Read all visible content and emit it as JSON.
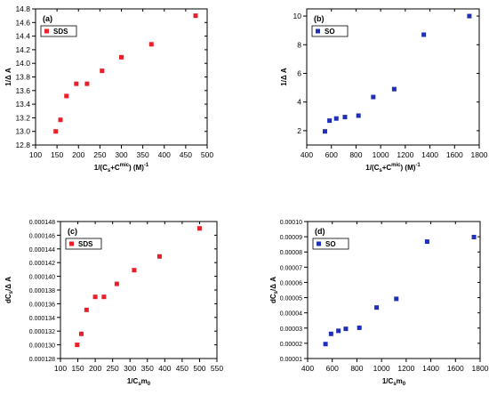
{
  "chart_data": [
    {
      "type": "scatter",
      "panel_label": "(a)",
      "xlabel_parts": [
        "1/(C",
        "s",
        "+C",
        "mic",
        ") (M)",
        "-1"
      ],
      "ylabel": "1/Δ A",
      "xlim": [
        100,
        500
      ],
      "ylim": [
        12.8,
        14.8
      ],
      "xticks": [
        100,
        150,
        200,
        250,
        300,
        350,
        400,
        450,
        500
      ],
      "yticks": [
        12.8,
        13.0,
        13.2,
        13.4,
        13.6,
        13.8,
        14.0,
        14.2,
        14.4,
        14.6,
        14.8
      ],
      "ytick_labels": [
        "12.8",
        "13.0",
        "13.2",
        "13.4",
        "13.6",
        "13.8",
        "14.0",
        "14.2",
        "14.4",
        "14.6",
        "14.8"
      ],
      "legend": {
        "label": "SDS",
        "position": "top-left"
      },
      "series": [
        {
          "name": "SDS",
          "color": "#e8202a",
          "points": [
            [
              147,
              13.0
            ],
            [
              158,
              13.17
            ],
            [
              172,
              13.52
            ],
            [
              195,
              13.7
            ],
            [
              220,
              13.7
            ],
            [
              255,
              13.89
            ],
            [
              300,
              14.09
            ],
            [
              370,
              14.28
            ],
            [
              473,
              14.7
            ]
          ]
        }
      ]
    },
    {
      "type": "scatter",
      "panel_label": "(b)",
      "xlabel_parts": [
        "1/(C",
        "s",
        "+C",
        "mic",
        ") (M)",
        "-1"
      ],
      "ylabel": "1/Δ A",
      "xlim": [
        400,
        1800
      ],
      "ylim": [
        1,
        10.5
      ],
      "xticks": [
        400,
        600,
        800,
        1000,
        1200,
        1400,
        1600,
        1800
      ],
      "yticks": [
        2,
        4,
        6,
        8,
        10
      ],
      "ytick_labels": [
        "2",
        "4",
        "6",
        "8",
        "10"
      ],
      "legend": {
        "label": "SO",
        "position": "top-left"
      },
      "series": [
        {
          "name": "SO",
          "color": "#1f2fb8",
          "points": [
            [
              548,
              1.95
            ],
            [
              585,
              2.7
            ],
            [
              640,
              2.85
            ],
            [
              710,
              2.95
            ],
            [
              820,
              3.05
            ],
            [
              940,
              4.35
            ],
            [
              1110,
              4.9
            ],
            [
              1350,
              8.7
            ],
            [
              1720,
              10.0
            ]
          ]
        }
      ]
    },
    {
      "type": "scatter",
      "panel_label": "(c)",
      "xlabel_parts": [
        "1/C",
        "s",
        "m",
        "0"
      ],
      "ylabel_parts": [
        "dC",
        "s",
        "/Δ A"
      ],
      "xlim": [
        100,
        550
      ],
      "ylim": [
        0.000128,
        0.000148
      ],
      "xticks": [
        100,
        150,
        200,
        250,
        300,
        350,
        400,
        450,
        500,
        550
      ],
      "yticks": [
        0.000128,
        0.00013,
        0.000132,
        0.000134,
        0.000136,
        0.000138,
        0.00014,
        0.000142,
        0.000144,
        0.000146,
        0.000148
      ],
      "ytick_labels": [
        "0.000128",
        "0.000130",
        "0.000132",
        "0.000134",
        "0.000136",
        "0.000138",
        "0.000140",
        "0.000142",
        "0.000144",
        "0.000146",
        "0.000148"
      ],
      "legend": {
        "label": "SDS",
        "position": "top-left"
      },
      "series": [
        {
          "name": "SDS",
          "color": "#e8202a",
          "points": [
            [
              148,
              0.00013
            ],
            [
              160,
              0.0001316
            ],
            [
              175,
              0.0001351
            ],
            [
              200,
              0.000137
            ],
            [
              225,
              0.000137
            ],
            [
              262,
              0.0001389
            ],
            [
              312,
              0.0001409
            ],
            [
              385,
              0.0001429
            ],
            [
              500,
              0.000147
            ]
          ]
        }
      ]
    },
    {
      "type": "scatter",
      "panel_label": "(d)",
      "xlabel_parts": [
        "1/C",
        "s",
        "m",
        "0"
      ],
      "ylabel_parts": [
        "dC",
        "s",
        "/Δ A"
      ],
      "xlim": [
        400,
        1800
      ],
      "ylim": [
        1e-05,
        0.0001
      ],
      "xticks": [
        400,
        600,
        800,
        1000,
        1200,
        1400,
        1600,
        1800
      ],
      "yticks": [
        1e-05,
        2e-05,
        3e-05,
        4e-05,
        5e-05,
        6e-05,
        7e-05,
        8e-05,
        9e-05,
        0.0001
      ],
      "ytick_labels": [
        "0.00001",
        "0.00002",
        "0.00003",
        "0.00004",
        "0.00005",
        "0.00006",
        "0.00007",
        "0.00008",
        "0.00009",
        "0.00010"
      ],
      "legend": {
        "label": "SO",
        "position": "top-left"
      },
      "series": [
        {
          "name": "SO",
          "color": "#1f2fb8",
          "points": [
            [
              545,
              1.95e-05
            ],
            [
              590,
              2.62e-05
            ],
            [
              650,
              2.82e-05
            ],
            [
              710,
              2.95e-05
            ],
            [
              820,
              3.02e-05
            ],
            [
              960,
              4.35e-05
            ],
            [
              1120,
              4.92e-05
            ],
            [
              1370,
              8.68e-05
            ],
            [
              1750,
              8.98e-05
            ]
          ]
        }
      ]
    }
  ]
}
